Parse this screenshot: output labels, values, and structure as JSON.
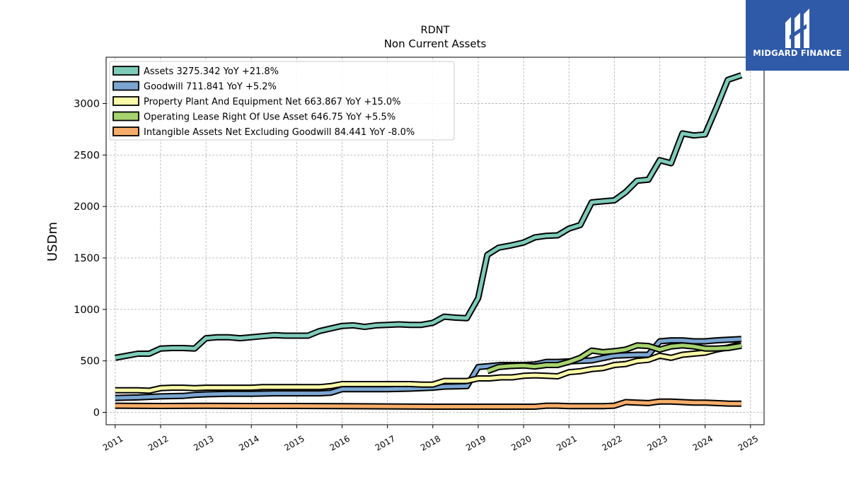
{
  "chart_data": {
    "type": "line",
    "title": "RDNT",
    "subtitle": "Non Current  Assets",
    "ylabel": "USDm",
    "xlabel": "",
    "xlim": [
      2010.8,
      2025.3
    ],
    "ylim": [
      -120,
      3450
    ],
    "yticks": [
      0,
      500,
      1000,
      1500,
      2000,
      2500,
      3000
    ],
    "xticks": [
      "2011",
      "2012",
      "2013",
      "2014",
      "2015",
      "2016",
      "2017",
      "2018",
      "2019",
      "2020",
      "2021",
      "2022",
      "2023",
      "2024",
      "2025"
    ],
    "grid": true,
    "legend_position": "top-left",
    "series": [
      {
        "name": "Assets  3275.342 YoY +21.8%",
        "color": "#7ecbb9",
        "x": [
          2011.0,
          2011.25,
          2011.5,
          2011.75,
          2012.0,
          2012.25,
          2012.5,
          2012.75,
          2013.0,
          2013.25,
          2013.5,
          2013.75,
          2014.0,
          2014.25,
          2014.5,
          2014.75,
          2015.0,
          2015.25,
          2015.5,
          2015.75,
          2016.0,
          2016.25,
          2016.5,
          2016.75,
          2017.0,
          2017.25,
          2017.5,
          2017.75,
          2018.0,
          2018.25,
          2018.5,
          2018.75,
          2019.0,
          2019.2,
          2019.45,
          2019.7,
          2020.0,
          2020.25,
          2020.5,
          2020.75,
          2021.0,
          2021.25,
          2021.5,
          2021.75,
          2022.0,
          2022.25,
          2022.5,
          2022.75,
          2023.0,
          2023.25,
          2023.5,
          2023.75,
          2024.0,
          2024.25,
          2024.5,
          2024.8
        ],
        "y": [
          530,
          550,
          570,
          570,
          620,
          625,
          625,
          620,
          720,
          730,
          730,
          720,
          730,
          740,
          750,
          745,
          745,
          745,
          790,
          815,
          840,
          845,
          830,
          845,
          850,
          855,
          850,
          850,
          870,
          930,
          920,
          915,
          1110,
          1530,
          1600,
          1620,
          1650,
          1700,
          1715,
          1720,
          1785,
          1820,
          2040,
          2050,
          2060,
          2140,
          2250,
          2260,
          2450,
          2420,
          2710,
          2690,
          2700,
          2960,
          3230,
          3275
        ]
      },
      {
        "name": "Goodwill  711.841 YoY +5.2%",
        "color": "#7ba6d1",
        "x": [
          2011.0,
          2011.5,
          2012.0,
          2012.5,
          2012.75,
          2013.0,
          2013.5,
          2014.0,
          2014.5,
          2015.0,
          2015.5,
          2015.75,
          2016.0,
          2016.5,
          2017.0,
          2017.5,
          2018.0,
          2018.25,
          2018.75,
          2019.0,
          2019.25,
          2019.5,
          2020.0,
          2020.25,
          2020.5,
          2020.75,
          2021.0,
          2021.5,
          2022.0,
          2022.5,
          2022.75,
          2023.0,
          2023.25,
          2023.5,
          2023.75,
          2024.0,
          2024.25,
          2024.5,
          2024.8
        ],
        "y": [
          140,
          145,
          155,
          160,
          170,
          175,
          180,
          180,
          185,
          185,
          185,
          190,
          225,
          225,
          225,
          230,
          240,
          250,
          255,
          440,
          450,
          460,
          460,
          465,
          490,
          490,
          495,
          505,
          550,
          560,
          560,
          690,
          700,
          700,
          690,
          690,
          700,
          705,
          712
        ]
      },
      {
        "name": "Property Plant And Equipment Net  663.867 YoY +15.0%",
        "color": "#fbfaa9",
        "x": [
          2011.0,
          2011.5,
          2011.75,
          2012.0,
          2012.25,
          2012.5,
          2012.75,
          2013.0,
          2013.5,
          2014.0,
          2014.25,
          2014.5,
          2014.75,
          2015.0,
          2015.25,
          2015.5,
          2015.75,
          2016.0,
          2016.5,
          2017.0,
          2017.25,
          2017.5,
          2017.75,
          2018.0,
          2018.25,
          2018.75,
          2019.0,
          2019.25,
          2019.5,
          2019.75,
          2020.0,
          2020.25,
          2020.5,
          2020.75,
          2021.0,
          2021.25,
          2021.5,
          2021.75,
          2022.0,
          2022.25,
          2022.5,
          2022.75,
          2023.0,
          2023.25,
          2023.5,
          2023.75,
          2024.0,
          2024.25,
          2024.5,
          2024.8
        ],
        "y": [
          215,
          215,
          210,
          235,
          240,
          240,
          235,
          240,
          240,
          240,
          245,
          245,
          245,
          245,
          245,
          245,
          255,
          275,
          275,
          275,
          275,
          275,
          270,
          270,
          305,
          305,
          330,
          330,
          340,
          340,
          355,
          360,
          355,
          350,
          390,
          400,
          420,
          430,
          460,
          470,
          500,
          510,
          550,
          530,
          560,
          570,
          580,
          610,
          630,
          664
        ]
      },
      {
        "name": "Operating Lease Right Of Use Asset  646.75 YoY +5.5%",
        "color": "#a6d36e",
        "x": [
          2019.2,
          2019.45,
          2019.7,
          2020.0,
          2020.25,
          2020.5,
          2020.75,
          2021.0,
          2021.25,
          2021.5,
          2021.75,
          2022.0,
          2022.25,
          2022.5,
          2022.75,
          2023.0,
          2023.25,
          2023.5,
          2023.75,
          2024.0,
          2024.25,
          2024.5,
          2024.8
        ],
        "y": [
          400,
          440,
          450,
          455,
          445,
          460,
          460,
          490,
          530,
          600,
          585,
          595,
          610,
          650,
          645,
          610,
          640,
          650,
          640,
          620,
          620,
          625,
          647
        ]
      },
      {
        "name": "Intangible Assets Net Excluding Goodwill  84.441 YoY -8.0%",
        "color": "#f7ad6a",
        "x": [
          2011.0,
          2012.0,
          2013.0,
          2014.0,
          2015.0,
          2016.0,
          2017.0,
          2018.0,
          2019.0,
          2019.5,
          2020.0,
          2020.25,
          2020.5,
          2020.75,
          2021.0,
          2021.5,
          2021.75,
          2022.0,
          2022.25,
          2022.5,
          2022.75,
          2023.0,
          2023.25,
          2023.5,
          2023.75,
          2024.0,
          2024.25,
          2024.5,
          2024.8
        ],
        "y": [
          65,
          62,
          63,
          62,
          62,
          60,
          58,
          55,
          55,
          55,
          55,
          55,
          65,
          65,
          60,
          60,
          60,
          65,
          100,
          95,
          90,
          105,
          105,
          100,
          95,
          95,
          90,
          85,
          84
        ]
      }
    ]
  },
  "logo": {
    "text": "MIDGARD FINANCE",
    "icon": "midgard-logo-icon"
  }
}
